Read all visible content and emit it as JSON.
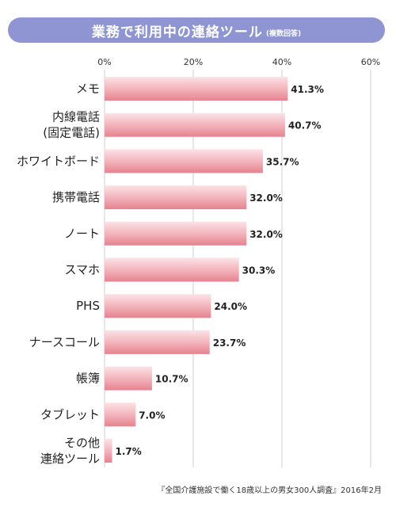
{
  "title": "業務で利用中の連絡ツール",
  "subtitle": "(複数回答)",
  "source": "『全国介護施設で働く18歳以上の男女300人調査』2016年2月",
  "colors": {
    "title_bg": "#8e95d2",
    "bar_light": "#fbe3e6",
    "bar_mid": "#f2b0b8",
    "bar_dark": "#e6838f",
    "grid": "#cfcfcf"
  },
  "chart_data": {
    "type": "bar",
    "orientation": "horizontal",
    "title": "業務で利用中の連絡ツール",
    "subtitle": "(複数回答)",
    "xlim": [
      0,
      60
    ],
    "xticks": [
      "0%",
      "20%",
      "40%",
      "60%"
    ],
    "categories": [
      [
        "メモ"
      ],
      [
        "内線電話",
        "(固定電話)"
      ],
      [
        "ホワイトボード"
      ],
      [
        "携帯電話"
      ],
      [
        "ノート"
      ],
      [
        "スマホ"
      ],
      [
        "PHS"
      ],
      [
        "ナースコール"
      ],
      [
        "帳簿"
      ],
      [
        "タブレット"
      ],
      [
        "その他",
        "連絡ツール"
      ]
    ],
    "values": [
      41.3,
      40.7,
      35.7,
      32.0,
      32.0,
      30.3,
      24.0,
      23.7,
      10.7,
      7.0,
      1.7
    ],
    "value_labels": [
      "41.3%",
      "40.7%",
      "35.7%",
      "32.0%",
      "32.0%",
      "30.3%",
      "24.0%",
      "23.7%",
      "10.7%",
      "7.0%",
      "1.7%"
    ],
    "grid": true
  }
}
